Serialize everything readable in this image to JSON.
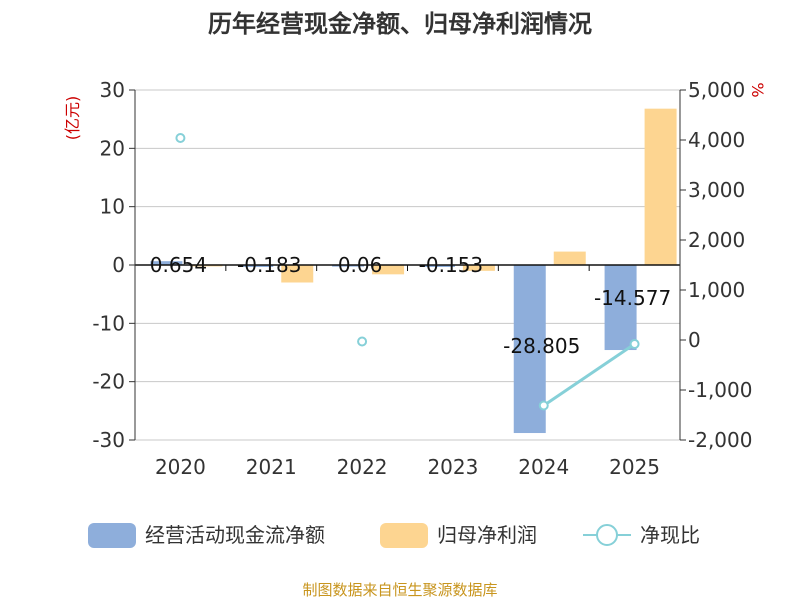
{
  "title": "历年经营现金净额、归母净利润情况",
  "source": "制图数据来自恒生聚源数据库",
  "chart_data": {
    "type": "bar",
    "categories": [
      "2020",
      "2021",
      "2022",
      "2023",
      "2024",
      "2025"
    ],
    "left_axis": {
      "unit": "(亿元)",
      "ylim": [
        -30,
        30
      ],
      "ticks": [
        "-30",
        "-20",
        "-10",
        "0",
        "10",
        "20",
        "30"
      ]
    },
    "right_axis": {
      "unit": "%",
      "ylim": [
        -2000,
        5000
      ],
      "ticks": [
        "-2,000",
        "-1,000",
        "0",
        "1,000",
        "2,000",
        "3,000",
        "4,000",
        "5,000"
      ]
    },
    "grid": true,
    "legend_position": "bottom",
    "series": [
      {
        "name": "经营活动现金流净额",
        "type": "bar",
        "axis": "left",
        "color": "#8eaedb",
        "values": [
          0.654,
          -0.183,
          0.06,
          -0.153,
          -28.805,
          -14.577
        ],
        "labels": [
          "0.654",
          "-0.183",
          "0.06",
          "-0.153",
          "-28.805",
          "-14.577"
        ]
      },
      {
        "name": "归母净利润",
        "type": "bar",
        "axis": "left",
        "color": "#fdd591",
        "values": [
          0.1,
          -3.0,
          -1.6,
          -1.0,
          2.3,
          26.8
        ]
      },
      {
        "name": "净现比",
        "type": "line",
        "axis": "right",
        "color": "#86d0d8",
        "values": [
          4040,
          null,
          -30,
          null,
          -1310,
          -80
        ]
      }
    ]
  }
}
